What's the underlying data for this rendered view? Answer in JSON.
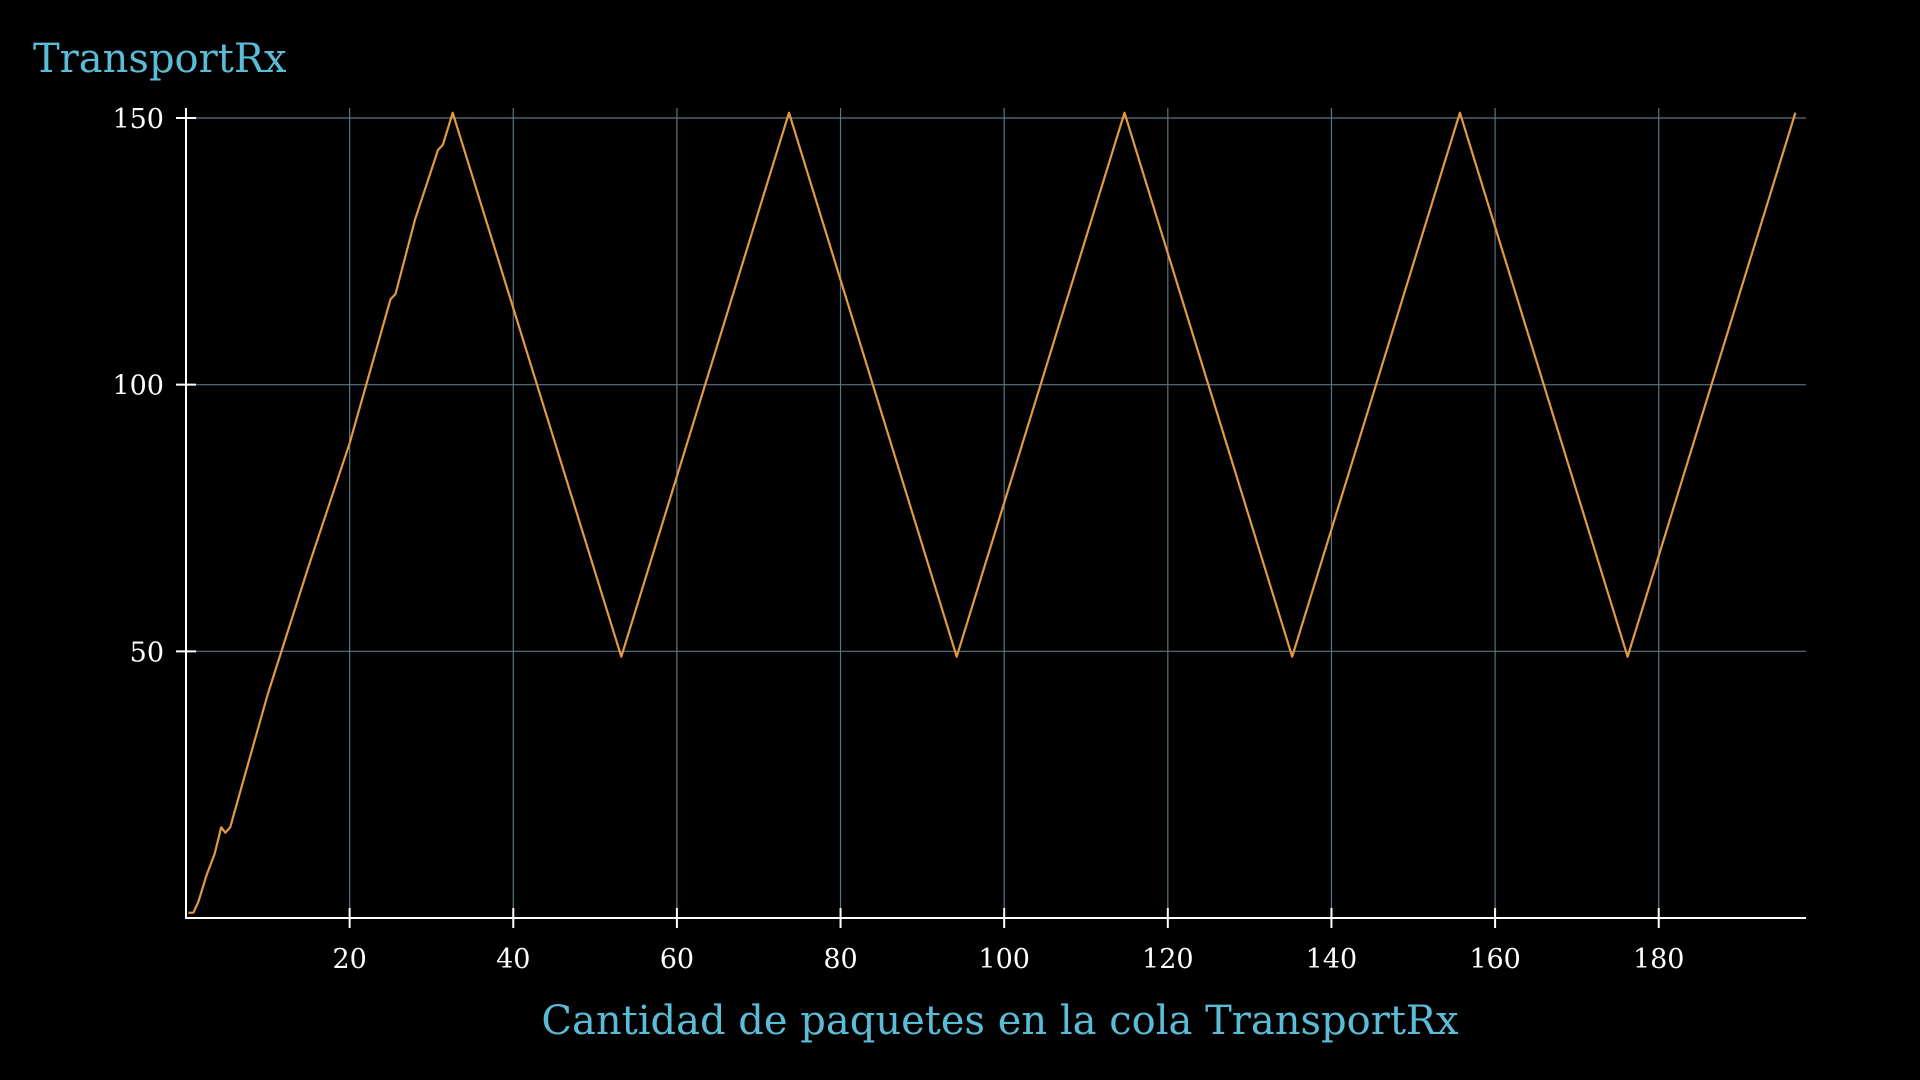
{
  "colors": {
    "background": "#000000",
    "title": "#5bbcd8",
    "xlabel": "#5bbcd8",
    "axis": "#ffffff",
    "tick_labels": "#ffffff",
    "grid": "#5a7585",
    "series": "#e09a45"
  },
  "chart_data": {
    "type": "line",
    "title": "TransportRx",
    "xlabel": "Cantidad de paquetes en la cola TransportRx",
    "ylabel": "",
    "xlim": [
      0,
      198
    ],
    "ylim": [
      0,
      151.5
    ],
    "grid": true,
    "x_ticks": [
      20,
      40,
      60,
      80,
      100,
      120,
      140,
      160,
      180
    ],
    "y_ticks": [
      50,
      100,
      150
    ],
    "series": [
      {
        "x": [
          0.3,
          0.9,
          1.5,
          2.5,
          3.5,
          4.3,
          4.8,
          5.4,
          6.5,
          10,
          15,
          20,
          25,
          25.6,
          28,
          30.8,
          31.4,
          32.6,
          53.2,
          73.7,
          94.2,
          114.7,
          135.2,
          155.7,
          176.2,
          196.7
        ],
        "y": [
          1,
          1,
          3,
          8,
          12,
          17,
          16,
          17,
          23,
          42,
          66,
          89,
          116,
          117,
          131,
          144,
          145,
          151,
          49,
          151,
          49,
          151,
          49,
          151,
          49,
          151
        ]
      }
    ]
  }
}
